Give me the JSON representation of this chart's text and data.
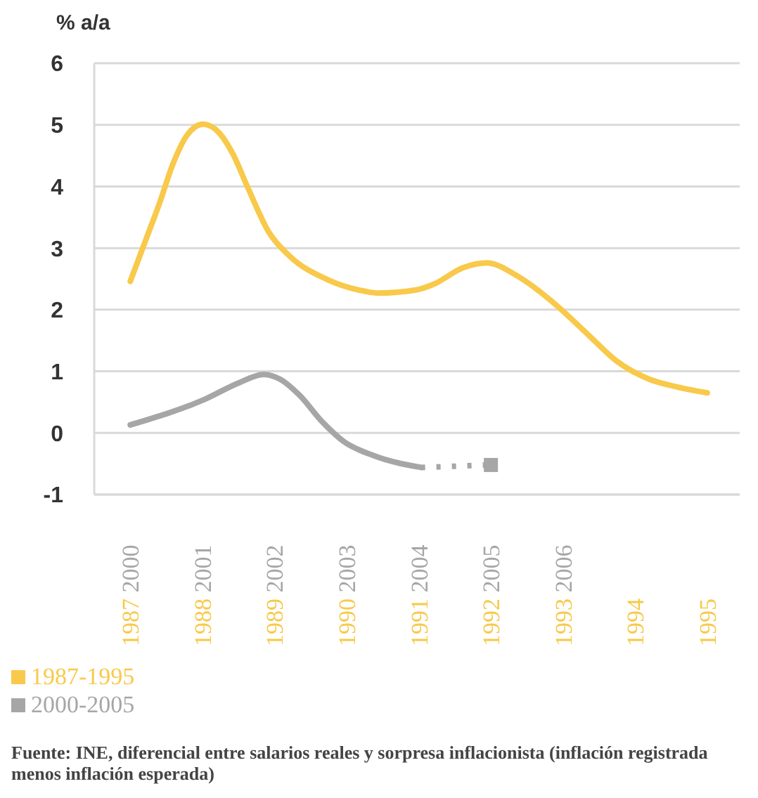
{
  "chart_data": {
    "type": "line",
    "ylabel": "% a/a",
    "ylim": [
      -1,
      6
    ],
    "yticks": [
      -1,
      0,
      1,
      2,
      3,
      4,
      5,
      6
    ],
    "xlim": [
      1986.5,
      1995.45
    ],
    "xticks": [
      {
        "value": 1987,
        "label": "1987 2000"
      },
      {
        "value": 1988,
        "label": "1988 2001"
      },
      {
        "value": 1989,
        "label": "1989 2002"
      },
      {
        "value": 1990,
        "label": "1990 2003"
      },
      {
        "value": 1991,
        "label": "1991 2004"
      },
      {
        "value": 1992,
        "label": "1992 2005"
      },
      {
        "value": 1993,
        "label": "1993 2006"
      },
      {
        "value": 1994,
        "label": "1994"
      },
      {
        "value": 1995,
        "label": "1995"
      }
    ],
    "grid": "y",
    "legend": "bottom left",
    "marker": "none",
    "line_style": "solid",
    "series": [
      {
        "name": "1987-1995",
        "color": "#f8c94a",
        "x": [
          1987,
          1987.23,
          1987.4,
          1987.59,
          1987.78,
          1988.01,
          1988.24,
          1988.43,
          1988.63,
          1988.92,
          1989.21,
          1989.73,
          1990.25,
          1990.44,
          1990.96,
          1991.22,
          1991.61,
          1991.94,
          1992.39,
          1992.91,
          1993.36,
          1993.75,
          1994.2,
          1994.53,
          1995
        ],
        "values": [
          2.46,
          3.18,
          3.71,
          4.36,
          4.82,
          5.01,
          4.86,
          4.51,
          3.98,
          3.26,
          2.87,
          2.49,
          2.3,
          2.27,
          2.32,
          2.42,
          2.68,
          2.76,
          2.53,
          2.07,
          1.58,
          1.16,
          0.87,
          0.76,
          0.65
        ]
      },
      {
        "name": "2000-2005",
        "color": "#a6a6a6",
        "x": [
          1987,
          1988.04,
          1988.5,
          1988.85,
          1989.08,
          1989.34,
          1989.67,
          1989.96,
          1990.38,
          1991.03
        ],
        "values": [
          0.13,
          0.55,
          0.81,
          0.95,
          0.87,
          0.62,
          0.17,
          -0.14,
          -0.37,
          -0.56
        ]
      },
      {
        "color": "#a6a6a6",
        "line_style": "dotted",
        "x": [
          1991.03,
          1992
        ],
        "values": [
          -0.56,
          -0.52
        ]
      },
      {
        "type": "scatter",
        "color": "#a6a6a6",
        "marker": "square",
        "x": [
          1992
        ],
        "values": [
          -0.52
        ]
      }
    ],
    "annotations": [
      "Fuente: INE, diferencial entre salarios reales y sorpresa inflacionista (inflación registrada menos inflación esperada)"
    ]
  }
}
